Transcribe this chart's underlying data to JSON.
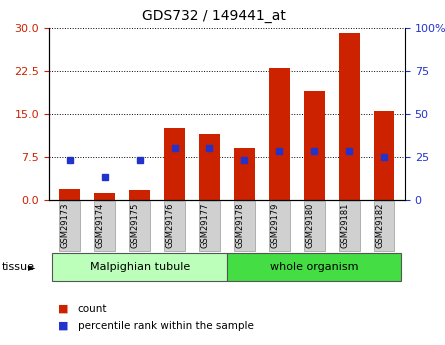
{
  "title": "GDS732 / 149441_at",
  "samples": [
    "GSM29173",
    "GSM29174",
    "GSM29175",
    "GSM29176",
    "GSM29177",
    "GSM29178",
    "GSM29179",
    "GSM29180",
    "GSM29181",
    "GSM29182"
  ],
  "counts": [
    2.0,
    1.3,
    1.8,
    12.5,
    11.5,
    9.0,
    23.0,
    19.0,
    29.0,
    15.5
  ],
  "percentiles": [
    7,
    4,
    7,
    9,
    9,
    7,
    8.5,
    8.5,
    8.5,
    7.5
  ],
  "bar_color": "#cc2200",
  "blue_color": "#2233cc",
  "ylim_left": [
    0,
    30
  ],
  "yticks_left": [
    0,
    7.5,
    15,
    22.5,
    30
  ],
  "ylim_right": [
    0,
    100
  ],
  "yticks_right": [
    0,
    25,
    50,
    75,
    100
  ],
  "tissue_groups": [
    {
      "label": "Malpighian tubule",
      "start": 0,
      "end": 5,
      "color": "#bbffbb"
    },
    {
      "label": "whole organism",
      "start": 5,
      "end": 10,
      "color": "#44dd44"
    }
  ],
  "tissue_label": "tissue",
  "legend_count": "count",
  "legend_percentile": "percentile rank within the sample",
  "grid_color": "black",
  "grid_style": "dotted",
  "bg_color": "#ffffff",
  "tick_color_left": "#cc2200",
  "tick_color_right": "#2233cc",
  "bar_width": 0.6
}
